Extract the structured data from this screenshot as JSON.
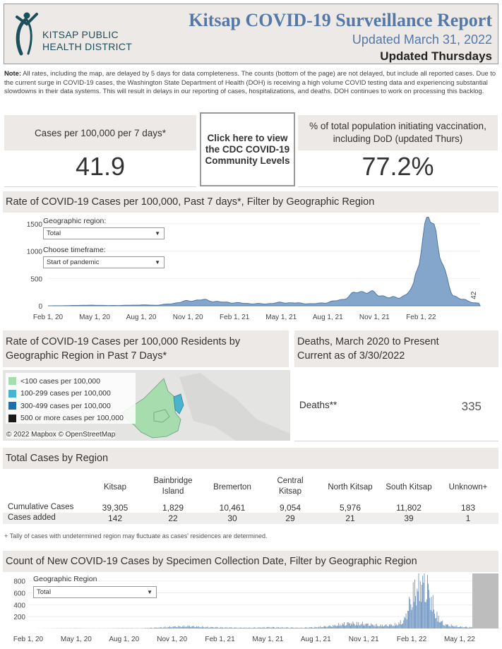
{
  "header": {
    "logo_line1": "KITSAP PUBLIC",
    "logo_line2": "HEALTH DISTRICT",
    "title": "Kitsap COVID-19 Surveillance Report",
    "updated": "Updated March 31, 2022",
    "updated_schedule": "Updated Thursdays",
    "brand_color": "#5479a8"
  },
  "note": {
    "label": "Note:",
    "text": "All rates, including the map, are delayed by 5 days for data completeness. The counts (bottom of the page) are not delayed, but include all reported cases. Due to the current surge in COVID-19 cases, the Washington State Department of Health (DOH) is receiving a high volume COVID testing data and experiencing substantial slowdowns in their data systems. This will result in delays in our reporting of cases, hospitalizations, and deaths. DOH continues to work on processing this backlog."
  },
  "kpis": {
    "cases_label": "Cases per 100,000 per 7 days*",
    "cases_value": "41.9",
    "cdc_button": "Click here to view the CDC COVID-19 Community Levels",
    "vax_label": "% of total population initiating vaccination, including DoD (updated Thurs)",
    "vax_value": "77.2%"
  },
  "rate_section": {
    "title": "Rate of COVID-19 Cases per 100,000, Past 7 days*, Filter by Geographic Region",
    "geo_label": "Geographic region:",
    "geo_value": "Total",
    "time_label": "Choose timeframe:",
    "time_value": "Start of pandemic"
  },
  "map_section": {
    "title_line1": "Rate of COVID-19 Cases per 100,000 Residents by",
    "title_line2": "Geographic Region in Past 7 Days*",
    "legend": [
      {
        "label": "<100 cases per 100,000",
        "color": "#a6dcae"
      },
      {
        "label": "100-299 cases per 100,000",
        "color": "#4ab3d0"
      },
      {
        "label": "300-499 cases per 100,000",
        "color": "#1f6fae"
      },
      {
        "label": "500 or more cases per 100,000",
        "color": "#1a1a1a"
      }
    ],
    "attribution": "© 2022 Mapbox  © OpenStreetMap"
  },
  "deaths": {
    "title_line1": "Deaths, March 2020 to Present",
    "title_line2": "Current as of 3/30/2022",
    "label": "Deaths**",
    "value": "335"
  },
  "region_table": {
    "title": "Total Cases by Region",
    "columns": [
      {
        "l1": "Kitsap",
        "l2": ""
      },
      {
        "l1": "Bainbridge",
        "l2": "Island"
      },
      {
        "l1": "Bremerton",
        "l2": ""
      },
      {
        "l1": "Central",
        "l2": "Kitsap"
      },
      {
        "l1": "North Kitsap",
        "l2": ""
      },
      {
        "l1": "South Kitsap",
        "l2": ""
      },
      {
        "l1": "Unknown+",
        "l2": ""
      }
    ],
    "rows": [
      {
        "label": "Cumulative Cases",
        "values": [
          "39,305",
          "1,829",
          "10,461",
          "9,054",
          "5,976",
          "11,802",
          "183"
        ]
      },
      {
        "label": "Cases added",
        "values": [
          "142",
          "22",
          "30",
          "29",
          "21",
          "39",
          "1"
        ]
      }
    ],
    "footnote": "+ Tally of cases with undetermined region may fluctuate as cases' residences are determined."
  },
  "count_section": {
    "title": "Count of New COVID-19 Cases by Specimen Collection Date, Filter by Geographic Region",
    "geo_label": "Geographic Region",
    "geo_value": "Total"
  },
  "chart_data": [
    {
      "type": "area",
      "title": "Rate of COVID-19 Cases per 100,000, Past 7 days*",
      "xlabel": "",
      "ylabel": "",
      "yticks": [
        0,
        500,
        1000,
        1500
      ],
      "ylim": [
        0,
        1600
      ],
      "xticks": [
        "Feb 1, 20",
        "May 1, 20",
        "Aug 1, 20",
        "Nov 1, 20",
        "Feb 1, 21",
        "May 1, 21",
        "Aug 1, 21",
        "Nov 1, 21",
        "Feb 1, 22"
      ],
      "x_months": [
        0,
        1,
        2,
        3,
        4,
        5,
        6,
        7,
        8,
        9,
        10,
        11,
        12,
        13,
        14,
        15,
        16,
        17,
        18,
        19,
        20,
        21,
        22,
        23,
        23.5,
        24,
        24.5,
        25,
        25.5,
        26,
        27,
        27.8
      ],
      "values": [
        0,
        2,
        8,
        10,
        5,
        8,
        15,
        10,
        40,
        90,
        110,
        70,
        55,
        40,
        35,
        60,
        50,
        35,
        60,
        120,
        270,
        230,
        140,
        180,
        350,
        1100,
        1600,
        1350,
        600,
        200,
        80,
        42
      ],
      "end_label": "42",
      "color": "#6f96c2"
    },
    {
      "type": "bar",
      "title": "Count of New COVID-19 Cases by Specimen Collection Date",
      "yticks": [
        200,
        400,
        600,
        800
      ],
      "ylim": [
        0,
        880
      ],
      "xticks": [
        "Feb 1, 20",
        "May 1, 20",
        "Aug 1, 20",
        "Nov 1, 20",
        "Feb 1, 21",
        "May 1, 21",
        "Aug 1, 21",
        "Nov 1, 21",
        "Feb 1, 22",
        "May 1, 22"
      ],
      "x_months": [
        0,
        1,
        2,
        3,
        4,
        5,
        6,
        7,
        8,
        9,
        10,
        11,
        12,
        13,
        14,
        15,
        16,
        17,
        18,
        19,
        20,
        21,
        22,
        23,
        23.5,
        24,
        24.5,
        25,
        25.5,
        26,
        27,
        27.8
      ],
      "values": [
        0,
        1,
        3,
        4,
        2,
        3,
        6,
        4,
        15,
        30,
        40,
        25,
        20,
        15,
        13,
        22,
        18,
        13,
        22,
        45,
        90,
        80,
        50,
        65,
        130,
        550,
        820,
        700,
        230,
        70,
        30,
        20
      ],
      "color": "#6f96c2"
    }
  ]
}
